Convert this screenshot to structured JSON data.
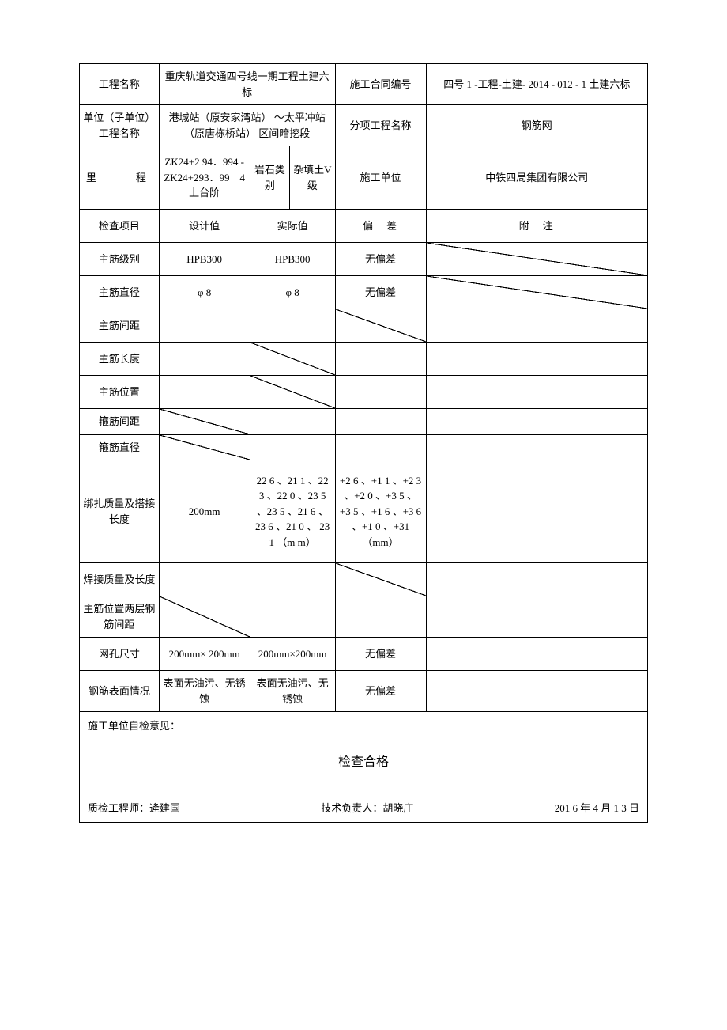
{
  "header": {
    "row1": {
      "label": "工程名称",
      "value1": "重庆轨道交通四号线一期工程土建六标",
      "label2": "施工合同编号",
      "value2": "四号 1 -工程-土建- 2014 - 012 - 1 土建六标"
    },
    "row2": {
      "label": "单位（子单位）工程名称",
      "value1": "港城站（原安家湾站） ～太平冲站（原唐栋桥站） 区间暗挖段",
      "label2": "分项工程名称",
      "value2": "钢筋网"
    },
    "row3": {
      "label": "里　　程",
      "value1": "ZK24+2 94．994 -ZK24+293．99　4 上台阶",
      "sub_label": "岩石类别",
      "sub_value": "杂填土V 级",
      "label2": "施工单位",
      "value2": "中铁四局集团有限公司"
    }
  },
  "columns": {
    "c1": "检查项目",
    "c2": "设计值",
    "c3": "实际值",
    "c4": "偏　差",
    "c5": "附　注"
  },
  "rows": {
    "r1": {
      "item": "主筋级别",
      "design": "HPB300",
      "actual": "HPB300",
      "dev": "无偏差"
    },
    "r2": {
      "item": "主筋直径",
      "design": "φ 8",
      "actual": "φ 8",
      "dev": "无偏差"
    },
    "r3": {
      "item": "主筋间距"
    },
    "r4": {
      "item": "主筋长度"
    },
    "r5": {
      "item": "主筋位置"
    },
    "r6": {
      "item": "箍筋间距"
    },
    "r7": {
      "item": "箍筋直径"
    },
    "r8": {
      "item": "绑扎质量及搭接长度",
      "design": "200mm",
      "actual": "22 6 、21 1 、22 3 、22 0 、23 5 、23 5 、21 6 、23 6 、21 0 、 23 1 （m m）",
      "dev": "+2 6 、+1 1 、+2 3 、+2 0 、+3 5 、+3 5 、+1 6 、+3 6 、+1 0 、+31（mm）"
    },
    "r9": {
      "item": "焊接质量及长度"
    },
    "r10": {
      "item": "主筋位置两层钢筋间距"
    },
    "r11": {
      "item": "网孔尺寸",
      "design": "200mm× 200mm",
      "actual": "200mm×200mm",
      "dev": "无偏差"
    },
    "r12": {
      "item": "钢筋表面情况",
      "design": "表面无油污、无锈蚀",
      "actual": "表面无油污、无锈蚀",
      "dev": "无偏差"
    }
  },
  "footer": {
    "title": "施工单位自检意见：",
    "result": "检查合格",
    "sign1": "质检工程师：逄建国",
    "sign2": "技术负责人：胡晓庄",
    "sign3": "201 6 年 4 月 1 3 日"
  }
}
